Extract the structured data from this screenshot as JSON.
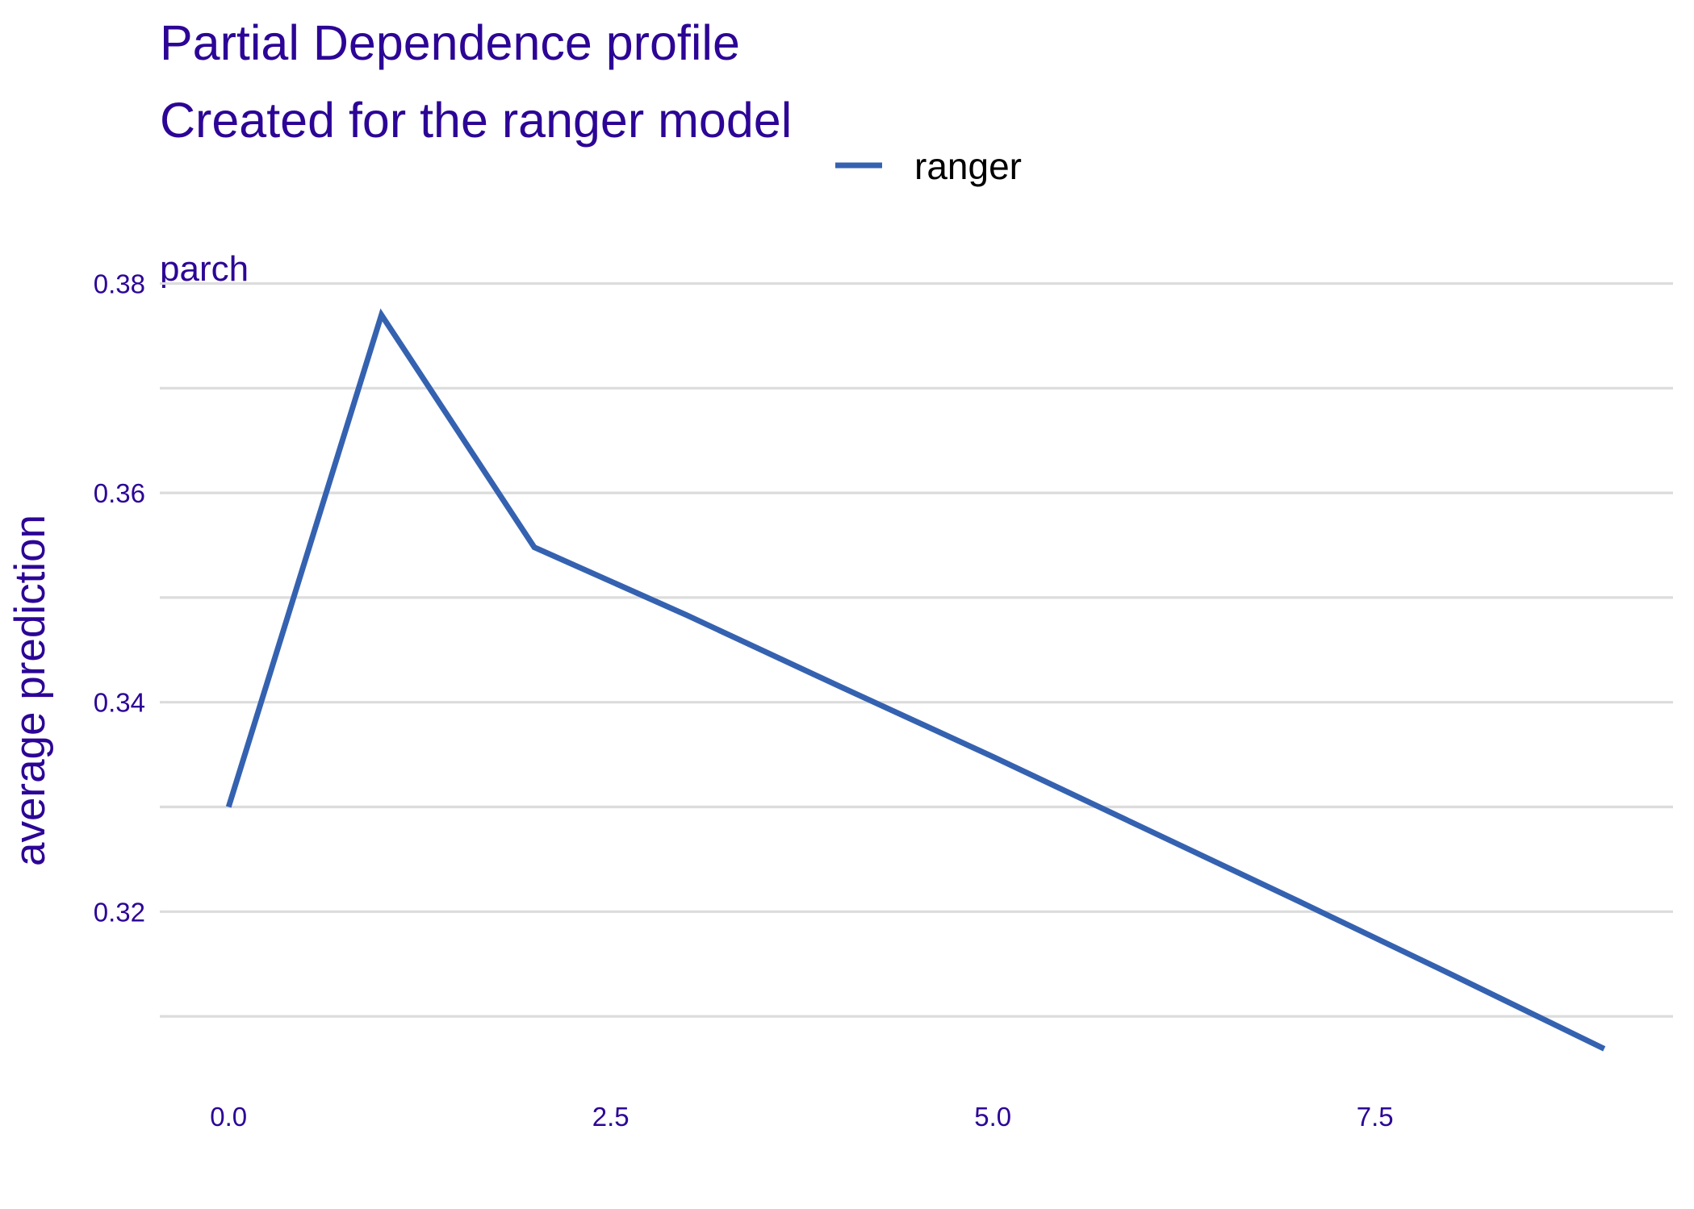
{
  "chart_data": {
    "type": "line",
    "title": "Partial Dependence profile",
    "subtitle": "Created for the ranger model",
    "panel_label": "parch",
    "ylabel": "average prediction",
    "xlabel": "",
    "xlim": [
      -0.45,
      9.45
    ],
    "ylim": [
      0.305,
      0.3805
    ],
    "x_ticks": [
      0.0,
      2.5,
      5.0,
      7.5
    ],
    "x_tick_labels": [
      "0.0",
      "2.5",
      "5.0",
      "7.5"
    ],
    "y_ticks": [
      0.32,
      0.34,
      0.36,
      0.38
    ],
    "y_tick_labels": [
      "0.32",
      "0.34",
      "0.36",
      "0.38"
    ],
    "y_minor_ticks": [
      0.31,
      0.33,
      0.35,
      0.37
    ],
    "grid": true,
    "legend_position": "top",
    "series": [
      {
        "name": "ranger",
        "color": "#3562b0",
        "x": [
          0,
          1,
          2,
          3,
          4,
          5,
          6,
          7,
          8,
          9
        ],
        "y": [
          0.33,
          0.377,
          0.3548,
          0.3483,
          0.3415,
          0.3348,
          0.3279,
          0.321,
          0.314,
          0.3069
        ]
      }
    ],
    "text_color": "#2c0596"
  }
}
